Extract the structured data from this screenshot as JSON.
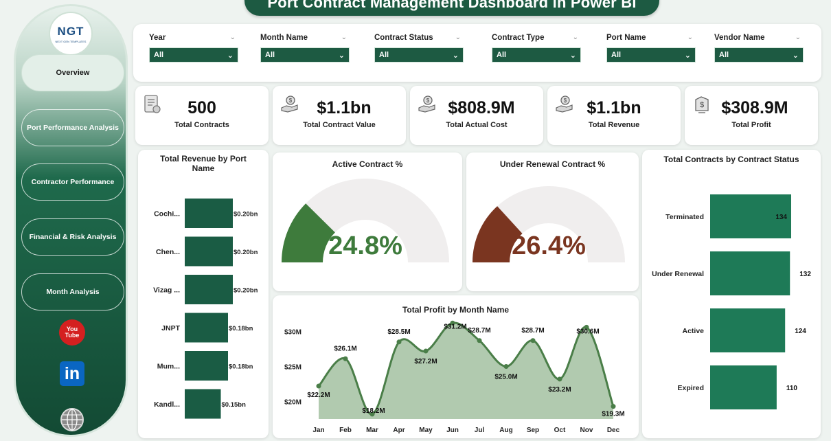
{
  "header": {
    "title": "Port Contract Management  Dashboard in Power BI"
  },
  "logo": {
    "text": "NGT",
    "sub": "NEXT GEN TEMPLATES"
  },
  "nav": [
    {
      "label": "Overview",
      "active": true
    },
    {
      "label": "Port Performance Analysis",
      "active": false
    },
    {
      "label": "Contractor Performance",
      "active": false
    },
    {
      "label": "Financial & Risk Analysis",
      "active": false
    },
    {
      "label": "Month Analysis",
      "active": false
    }
  ],
  "social": {
    "youtube_top": "You",
    "youtube_bottom": "Tube",
    "linkedin": "in"
  },
  "filters": [
    {
      "label": "Year",
      "value": "All"
    },
    {
      "label": "Month Name",
      "value": "All"
    },
    {
      "label": "Contract Status",
      "value": "All"
    },
    {
      "label": "Contract Type",
      "value": "All"
    },
    {
      "label": "Port Name",
      "value": "All"
    },
    {
      "label": "Vendor Name",
      "value": "All"
    }
  ],
  "kpis": [
    {
      "value": "500",
      "label": "Total Contracts",
      "icon": "document-icon"
    },
    {
      "value": "$1.1bn",
      "label": "Total Contract Value",
      "icon": "money-hand-icon"
    },
    {
      "value": "$808.9M",
      "label": "Total Actual Cost",
      "icon": "money-hand-icon"
    },
    {
      "value": "$1.1bn",
      "label": "Total Revenue",
      "icon": "money-hand-icon"
    },
    {
      "value": "$308.9M",
      "label": "Total Profit",
      "icon": "profit-icon"
    }
  ],
  "colors": {
    "primary": "#1d5a42",
    "bar": "#1a5c44",
    "bar2": "#1e7a57",
    "gauge_active": "#3e7b3c",
    "gauge_renewal": "#7a3520",
    "gauge_track": "#f0eeee",
    "area_fill": "#a9c4a6",
    "line": "#4a7e48"
  },
  "chart_data": [
    {
      "type": "bar",
      "orientation": "horizontal",
      "title": "Total Revenue by Port Name",
      "categories": [
        "Cochi...",
        "Chen...",
        "Vizag ...",
        "JNPT",
        "Mum...",
        "Kandl..."
      ],
      "values": [
        0.2,
        0.2,
        0.2,
        0.18,
        0.18,
        0.15
      ],
      "labels": [
        "$0.20bn",
        "$0.20bn",
        "$0.20bn",
        "$0.18bn",
        "$0.18bn",
        "$0.15bn"
      ],
      "unit": "bn"
    },
    {
      "type": "gauge",
      "title": "Active Contract %",
      "value": 24.8,
      "label": "24.8%",
      "max": 100
    },
    {
      "type": "gauge",
      "title": "Under Renewal Contract %",
      "value": 26.4,
      "label": "26.4%",
      "max": 100
    },
    {
      "type": "bar",
      "orientation": "horizontal",
      "title": "Total Contracts by Contract Status",
      "categories": [
        "Terminated",
        "Under Renewal",
        "Active",
        "Expired"
      ],
      "values": [
        134,
        132,
        124,
        110
      ],
      "labels": [
        "134",
        "132",
        "124",
        "110"
      ]
    },
    {
      "type": "area",
      "title": "Total Profit by Month Name",
      "categories": [
        "Jan",
        "Feb",
        "Mar",
        "Apr",
        "May",
        "Jun",
        "Jul",
        "Aug",
        "Sep",
        "Oct",
        "Nov",
        "Dec"
      ],
      "values": [
        22.2,
        26.1,
        18.2,
        28.5,
        27.2,
        31.2,
        28.7,
        25.0,
        28.7,
        23.2,
        30.6,
        19.3
      ],
      "labels": [
        "$22.2M",
        "$26.1M",
        "$18.2M",
        "$28.5M",
        "$27.2M",
        "$31.2M",
        "$28.7M",
        "$25.0M",
        "$28.7M",
        "$23.2M",
        "$30.6M",
        "$19.3M"
      ],
      "yticks": [
        "$20M",
        "$25M",
        "$30M"
      ],
      "ytick_values": [
        20,
        25,
        30
      ]
    }
  ]
}
